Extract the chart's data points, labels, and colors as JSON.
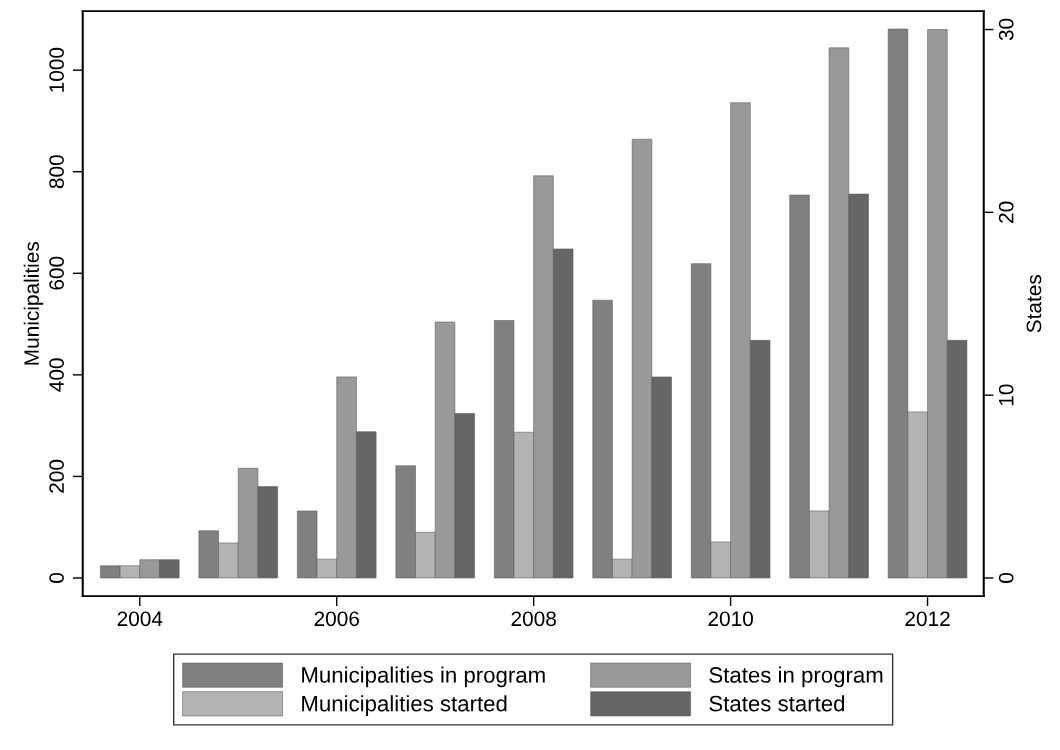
{
  "chart_data": {
    "type": "bar",
    "ylabel": "Municipalities",
    "y2label": "States",
    "x": [
      2004,
      2005,
      2006,
      2007,
      2008,
      2009,
      2010,
      2011,
      2012
    ],
    "series": [
      {
        "name": "Municipalities in program",
        "color": "#808080",
        "values": [
          24,
          93,
          132,
          221,
          507,
          547,
          619,
          754,
          1081
        ]
      },
      {
        "name": "Municipalities started",
        "color": "#b3b3b3",
        "values": [
          24,
          69,
          37,
          90,
          287,
          37,
          71,
          132,
          327
        ]
      },
      {
        "name": "States in program",
        "color": "#999999",
        "axis": "y2",
        "values": [
          1,
          6,
          11,
          14,
          22,
          24,
          26,
          29,
          30
        ]
      },
      {
        "name": "States started",
        "color": "#666666",
        "axis": "y2",
        "values": [
          1,
          5,
          8,
          9,
          18,
          11,
          13,
          21,
          13
        ]
      }
    ],
    "xlim": [
      2003.42,
      2012.57
    ],
    "xticks": [
      2004,
      2006,
      2008,
      2010,
      2012
    ],
    "ylim": [
      -36,
      1116
    ],
    "yticks": [
      0,
      200,
      400,
      600,
      800,
      1000
    ],
    "y2lim": [
      -1,
      31
    ],
    "y2ticks": [
      0,
      10,
      20,
      30
    ],
    "grid": false,
    "legend": "bottom"
  }
}
